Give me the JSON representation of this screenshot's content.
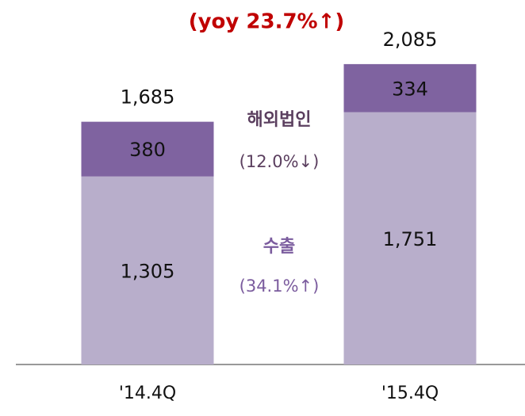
{
  "chart_data": {
    "type": "stacked_bar",
    "title": "(yoy 23.7%↑)",
    "title_color": "#c00000",
    "categories": [
      "'14.4Q",
      "'15.4Q"
    ],
    "series": [
      {
        "name": "수출",
        "color": "#b8aecb",
        "label_color": "#7b5c9e",
        "change_label": "(34.1%↑)",
        "values": [
          1305,
          1751
        ],
        "value_labels": [
          "1,305",
          "1,751"
        ]
      },
      {
        "name": "해외법인",
        "color": "#7f63a0",
        "label_color": "#5b3f5f",
        "change_label": "(12.0%↓)",
        "values": [
          380,
          334
        ],
        "value_labels": [
          "380",
          "334"
        ]
      }
    ],
    "totals": {
      "values": [
        1685,
        2085
      ],
      "value_labels": [
        "1,685",
        "2,085"
      ]
    },
    "ylim": [
      0,
      2200
    ]
  }
}
